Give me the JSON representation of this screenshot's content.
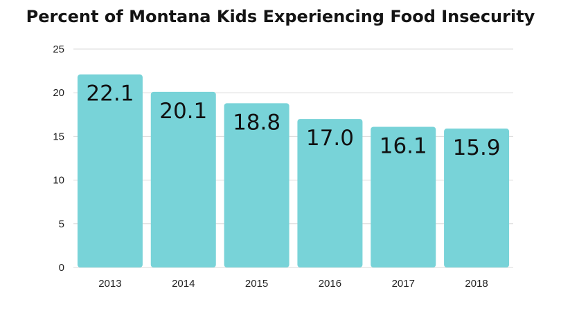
{
  "chart_data": {
    "type": "bar",
    "title": "Percent of Montana Kids Experiencing Food Insecurity",
    "xlabel": "",
    "ylabel": "",
    "categories": [
      "2013",
      "2014",
      "2015",
      "2016",
      "2017",
      "2018"
    ],
    "values": [
      22.1,
      20.1,
      18.8,
      17.0,
      16.1,
      15.9
    ],
    "data_labels": [
      "22.1",
      "20.1",
      "18.8",
      "17.0",
      "16.1",
      "15.9"
    ],
    "ylim": [
      0,
      25
    ],
    "yticks": [
      0,
      5,
      10,
      15,
      20,
      25
    ],
    "grid": true,
    "legend": "none",
    "bar_color": "#78d3d8",
    "grid_color": "#d9d9d9"
  }
}
